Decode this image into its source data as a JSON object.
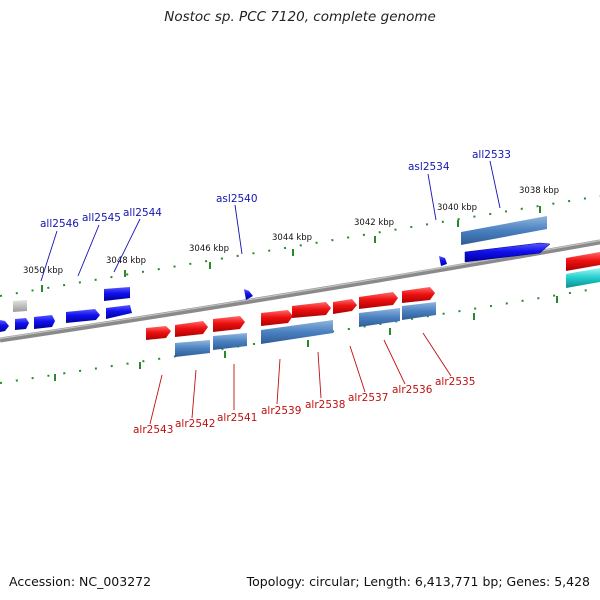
{
  "header": {
    "title": "Nostoc sp. PCC 7120, complete genome"
  },
  "footer": {
    "accession": "Accession: NC_003272",
    "summary": "Topology: circular; Length: 6,413,771 bp; Genes: 5,428"
  },
  "ticks": [
    {
      "label": "3050 kbp"
    },
    {
      "label": "3048 kbp"
    },
    {
      "label": "3046 kbp"
    },
    {
      "label": "3044 kbp"
    },
    {
      "label": "3042 kbp"
    },
    {
      "label": "3040 kbp"
    },
    {
      "label": "3038 kbp"
    }
  ],
  "genes_top": [
    {
      "name": "all2546"
    },
    {
      "name": "all2545"
    },
    {
      "name": "all2544"
    },
    {
      "name": "asl2540"
    },
    {
      "name": "asl2534"
    },
    {
      "name": "all2533"
    }
  ],
  "genes_bottom": [
    {
      "name": "alr2543"
    },
    {
      "name": "alr2542"
    },
    {
      "name": "alr2541"
    },
    {
      "name": "alr2539"
    },
    {
      "name": "alr2538"
    },
    {
      "name": "alr2537"
    },
    {
      "name": "alr2536"
    },
    {
      "name": "alr2535"
    }
  ]
}
